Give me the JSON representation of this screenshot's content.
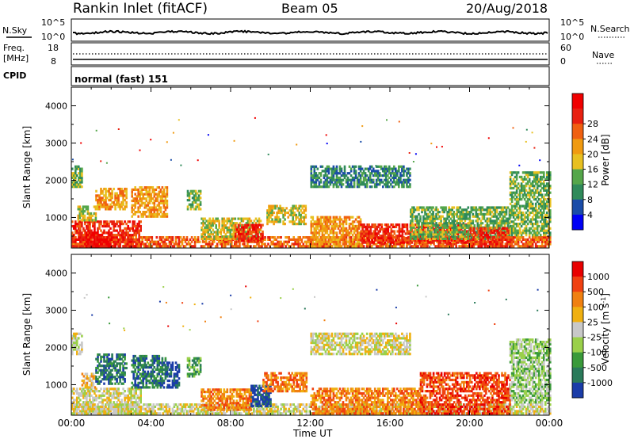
{
  "header": {
    "station": "Rankin Inlet (fitACF)",
    "beam": "Beam 05",
    "date": "20/Aug/2018"
  },
  "noise_panel": {
    "left_label": "N.Sky",
    "left_ticks": [
      "10^5",
      "10^0"
    ],
    "right_label": "N.Search",
    "right_ticks": [
      "10^5",
      "10^0"
    ]
  },
  "freq_panel": {
    "left_label_line1": "Freq.",
    "left_label_line2": "[MHz]",
    "left_ticks": [
      "18",
      "8"
    ],
    "right_label": "Nave",
    "right_ticks": [
      "60",
      "0"
    ]
  },
  "cpid_panel": {
    "label": "CPID",
    "program": "normal (fast) 151"
  },
  "x_axis": {
    "title": "Time UT",
    "ticks": [
      "00:00",
      "04:00",
      "08:00",
      "12:00",
      "16:00",
      "20:00",
      "00:00"
    ]
  },
  "colors": {
    "power_scale": [
      "#0000f5",
      "#1a4ca8",
      "#2f8a5a",
      "#55a64a",
      "#e8c020",
      "#f09a10",
      "#f06010",
      "#e82010",
      "#f00000"
    ],
    "velocity_scale": [
      "#1a3ca8",
      "#2a7a5a",
      "#3a9a3a",
      "#9ad04a",
      "#c8c8c8",
      "#f0b010",
      "#f08010",
      "#f04010",
      "#e80000"
    ]
  },
  "chart_data": [
    {
      "type": "heatmap",
      "title": "",
      "xlabel": "Time UT",
      "ylabel": "Slant Range [km]",
      "xlim": [
        0,
        24
      ],
      "ylim": [
        180,
        4500
      ],
      "x_ticks": [
        "00:00",
        "04:00",
        "08:00",
        "12:00",
        "16:00",
        "20:00",
        "00:00"
      ],
      "y_ticks": [
        1000,
        2000,
        3000,
        4000
      ],
      "colorbar_label": "Power [dB]",
      "colorbar_ticks": [
        "4",
        "8",
        "12",
        "16",
        "20",
        "24",
        "28"
      ],
      "regions": [
        {
          "t": [
            0,
            0.5
          ],
          "r": [
            1800,
            2400
          ],
          "level": 3
        },
        {
          "t": [
            0,
            24
          ],
          "r": [
            200,
            500
          ],
          "level": 6
        },
        {
          "t": [
            0,
            3.5
          ],
          "r": [
            200,
            900
          ],
          "level": 7
        },
        {
          "t": [
            0.7,
            2.0
          ],
          "r": [
            200,
            600
          ],
          "level": 8
        },
        {
          "t": [
            0.3,
            1.2
          ],
          "r": [
            900,
            1300
          ],
          "level": 4
        },
        {
          "t": [
            1.2,
            2.8
          ],
          "r": [
            1200,
            1800
          ],
          "level": 5
        },
        {
          "t": [
            3.0,
            4.8
          ],
          "r": [
            1000,
            1800
          ],
          "level": 5
        },
        {
          "t": [
            5.8,
            6.5
          ],
          "r": [
            1200,
            1700
          ],
          "level": 3
        },
        {
          "t": [
            6.5,
            9.5
          ],
          "r": [
            400,
            1000
          ],
          "level": 4
        },
        {
          "t": [
            8.2,
            9.6
          ],
          "r": [
            350,
            800
          ],
          "level": 7
        },
        {
          "t": [
            9.8,
            11.8
          ],
          "r": [
            800,
            1300
          ],
          "level": 4
        },
        {
          "t": [
            12.0,
            17.0
          ],
          "r": [
            1800,
            2400
          ],
          "level": 2
        },
        {
          "t": [
            12.0,
            14.5
          ],
          "r": [
            200,
            1000
          ],
          "level": 5
        },
        {
          "t": [
            14.5,
            20.0
          ],
          "r": [
            300,
            800
          ],
          "level": 7
        },
        {
          "t": [
            17.0,
            22.0
          ],
          "r": [
            400,
            1300
          ],
          "level": 3
        },
        {
          "t": [
            20.0,
            22.0
          ],
          "r": [
            200,
            700
          ],
          "level": 7
        },
        {
          "t": [
            22.0,
            24.0
          ],
          "r": [
            500,
            2200
          ],
          "level": 3
        }
      ]
    },
    {
      "type": "heatmap",
      "title": "",
      "xlabel": "Time UT",
      "ylabel": "Slant Range [km]",
      "xlim": [
        0,
        24
      ],
      "ylim": [
        180,
        4500
      ],
      "x_ticks": [
        "00:00",
        "04:00",
        "08:00",
        "12:00",
        "16:00",
        "20:00",
        "00:00"
      ],
      "y_ticks": [
        1000,
        2000,
        3000,
        4000
      ],
      "colorbar_label": "Velocity [m s^-1]",
      "colorbar_ticks": [
        "1000",
        "500",
        "100",
        "25",
        "-25",
        "-100",
        "-500",
        "-1000"
      ],
      "regions": [
        {
          "t": [
            0,
            0.5
          ],
          "r": [
            1800,
            2400
          ],
          "level": 4
        },
        {
          "t": [
            0,
            24
          ],
          "r": [
            200,
            450
          ],
          "level": 4
        },
        {
          "t": [
            0,
            3.5
          ],
          "r": [
            200,
            900
          ],
          "level": 4
        },
        {
          "t": [
            0.5,
            1.2
          ],
          "r": [
            900,
            1300
          ],
          "level": 5
        },
        {
          "t": [
            1.2,
            2.8
          ],
          "r": [
            1000,
            1800
          ],
          "level": 1
        },
        {
          "t": [
            3.0,
            4.8
          ],
          "r": [
            900,
            1800
          ],
          "level": 1
        },
        {
          "t": [
            4.8,
            5.4
          ],
          "r": [
            900,
            1600
          ],
          "level": 0
        },
        {
          "t": [
            5.8,
            6.5
          ],
          "r": [
            1200,
            1700
          ],
          "level": 2
        },
        {
          "t": [
            6.5,
            9.0
          ],
          "r": [
            300,
            900
          ],
          "level": 6
        },
        {
          "t": [
            9.0,
            10.0
          ],
          "r": [
            400,
            1000
          ],
          "level": 0
        },
        {
          "t": [
            9.6,
            11.8
          ],
          "r": [
            800,
            1300
          ],
          "level": 6
        },
        {
          "t": [
            12.0,
            17.0
          ],
          "r": [
            1800,
            2400
          ],
          "level": 4
        },
        {
          "t": [
            12.0,
            17.5
          ],
          "r": [
            200,
            900
          ],
          "level": 6
        },
        {
          "t": [
            17.5,
            22.0
          ],
          "r": [
            200,
            1300
          ],
          "level": 7
        },
        {
          "t": [
            22.0,
            24.0
          ],
          "r": [
            500,
            2200
          ],
          "level": 3
        }
      ]
    }
  ]
}
